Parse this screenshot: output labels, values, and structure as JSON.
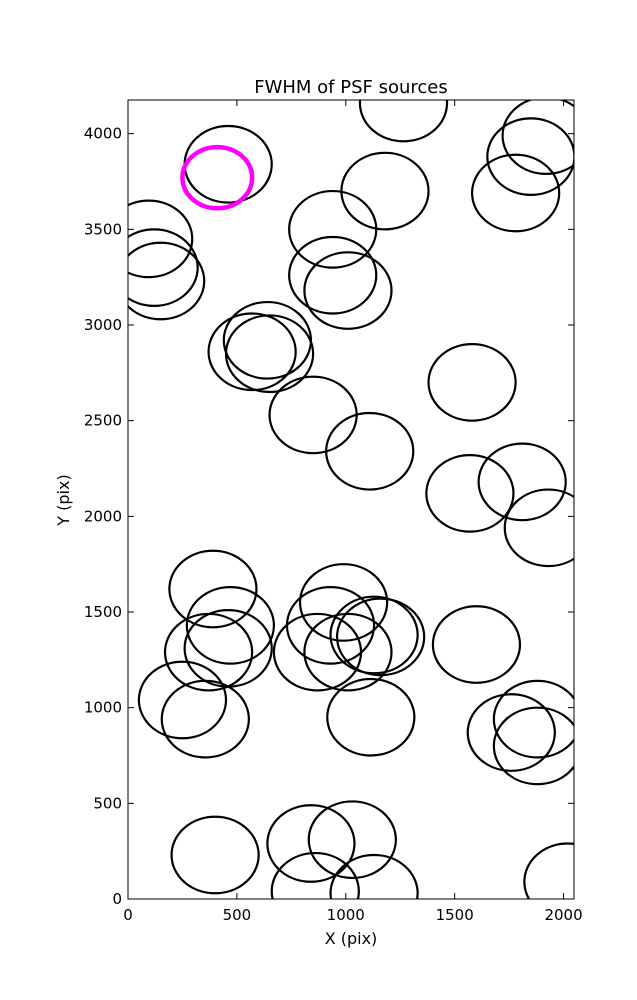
{
  "chart_data": {
    "type": "scatter",
    "title": "FWHM of PSF sources",
    "xlabel": "X (pix)",
    "ylabel": "Y (pix)",
    "xlim": [
      0,
      2048
    ],
    "ylim": [
      0,
      4176
    ],
    "xticks": [
      0,
      500,
      1000,
      1500,
      2000
    ],
    "yticks": [
      0,
      500,
      1000,
      1500,
      2000,
      2500,
      3000,
      3500,
      4000
    ],
    "grid": false,
    "legend": "none",
    "colors": {
      "source": "#000000",
      "highlight": "#ff00ff"
    },
    "fwhm_radius": 200,
    "sources": [
      {
        "x": 460,
        "y": 3840
      },
      {
        "x": 1265,
        "y": 4160
      },
      {
        "x": 1850,
        "y": 3880
      },
      {
        "x": 1920,
        "y": 3990
      },
      {
        "x": 1780,
        "y": 3690
      },
      {
        "x": 1180,
        "y": 3700
      },
      {
        "x": 940,
        "y": 3500
      },
      {
        "x": 95,
        "y": 3450
      },
      {
        "x": 120,
        "y": 3300
      },
      {
        "x": 150,
        "y": 3230
      },
      {
        "x": 940,
        "y": 3260
      },
      {
        "x": 1010,
        "y": 3180
      },
      {
        "x": 640,
        "y": 2920
      },
      {
        "x": 570,
        "y": 2860
      },
      {
        "x": 650,
        "y": 2850
      },
      {
        "x": 850,
        "y": 2530
      },
      {
        "x": 1110,
        "y": 2340
      },
      {
        "x": 1580,
        "y": 2700
      },
      {
        "x": 1570,
        "y": 2120
      },
      {
        "x": 1810,
        "y": 2180
      },
      {
        "x": 1930,
        "y": 1940
      },
      {
        "x": 390,
        "y": 1620
      },
      {
        "x": 470,
        "y": 1430
      },
      {
        "x": 370,
        "y": 1290
      },
      {
        "x": 460,
        "y": 1310
      },
      {
        "x": 250,
        "y": 1040
      },
      {
        "x": 355,
        "y": 940
      },
      {
        "x": 990,
        "y": 1550
      },
      {
        "x": 930,
        "y": 1430
      },
      {
        "x": 870,
        "y": 1290
      },
      {
        "x": 1130,
        "y": 1380
      },
      {
        "x": 1160,
        "y": 1370
      },
      {
        "x": 1010,
        "y": 1290
      },
      {
        "x": 1115,
        "y": 950
      },
      {
        "x": 1600,
        "y": 1330
      },
      {
        "x": 1880,
        "y": 940
      },
      {
        "x": 1760,
        "y": 870
      },
      {
        "x": 1880,
        "y": 800
      },
      {
        "x": 400,
        "y": 230
      },
      {
        "x": 840,
        "y": 290
      },
      {
        "x": 1030,
        "y": 310
      },
      {
        "x": 860,
        "y": 40
      },
      {
        "x": 1130,
        "y": 30
      },
      {
        "x": 2020,
        "y": 90
      }
    ],
    "highlight": {
      "x": 410,
      "y": 3770,
      "radius": 160
    }
  }
}
